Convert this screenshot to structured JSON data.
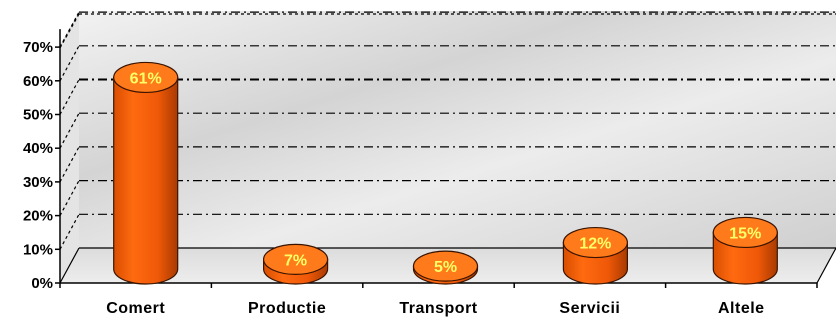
{
  "chart_data": {
    "type": "bar",
    "categories": [
      "Comert",
      "Productie",
      "Transport",
      "Servicii",
      "Altele"
    ],
    "values": [
      61,
      7,
      5,
      12,
      15
    ],
    "data_labels": [
      "61%",
      "7%",
      "5%",
      "12%",
      "15%"
    ],
    "y_ticks": [
      "0%",
      "10%",
      "20%",
      "30%",
      "40%",
      "50%",
      "60%",
      "70%"
    ],
    "ylim": [
      0,
      70
    ],
    "grid": true,
    "style": "3d-cylinder",
    "colors": {
      "bar": "#f06010",
      "bar_dark": "#a83a00",
      "bar_top": "#ff7a1a",
      "label": "#ffff66",
      "wall": "#e6e6e6",
      "floor": "#d8d8d8"
    }
  }
}
